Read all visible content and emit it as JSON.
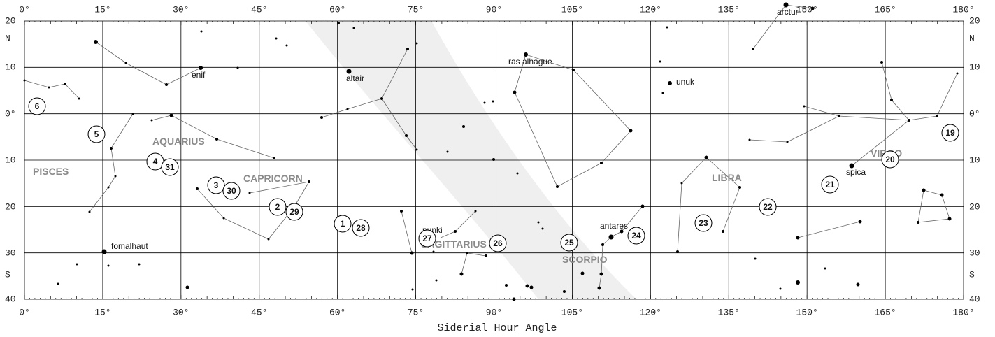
{
  "map": {
    "sha_labels": [
      "0°",
      "15°",
      "30°",
      "45°",
      "60°",
      "75°",
      "90°",
      "105°",
      "120°",
      "135°",
      "150°",
      "165°",
      "180°"
    ],
    "dec_labels": [
      "20",
      "N",
      "10",
      "0°",
      "10",
      "20",
      "30",
      "S",
      "40"
    ],
    "x_axis_title": "Siderial Hour Angle",
    "constellations": [
      "PISCES",
      "AQUARIUS",
      "CAPRICORN",
      "SAGITTARIUS",
      "SCORPIO",
      "LIBRA",
      "VIRGO"
    ],
    "stars": [
      "enif",
      "altair",
      "ras alhague",
      "unuk",
      "arctur",
      "spica",
      "antares",
      "nunki",
      "fomalhaut"
    ],
    "markers": [
      "6",
      "5",
      "4",
      "31",
      "3",
      "30",
      "2",
      "29",
      "1",
      "28",
      "27",
      "26",
      "25",
      "24",
      "23",
      "22",
      "21",
      "20",
      "19"
    ]
  }
}
